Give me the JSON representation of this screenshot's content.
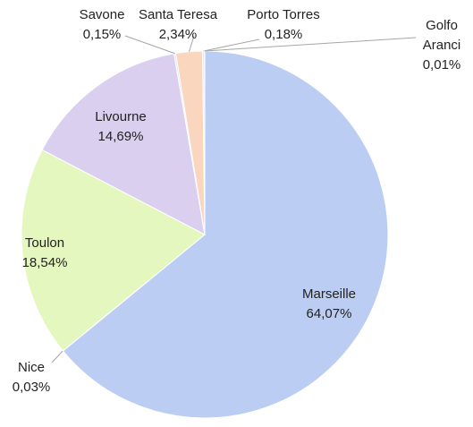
{
  "chart_data": {
    "type": "pie",
    "categories": [
      "Marseille",
      "Nice",
      "Toulon",
      "Livourne",
      "Savone",
      "Santa Teresa",
      "Porto Torres",
      "Golfo Aranci"
    ],
    "values": [
      64.07,
      0.03,
      18.54,
      14.69,
      0.15,
      2.34,
      0.18,
      0.01
    ],
    "value_labels": [
      "64,07%",
      "0,03%",
      "18,54%",
      "14,69%",
      "0,15%",
      "2,34%",
      "0,18%",
      "0,01%"
    ],
    "colors": [
      "#bccdf3",
      "#c3d4f4",
      "#e4f7bf",
      "#dacfee",
      "#d6e4f3",
      "#fbd6bf",
      "#dfe9f5",
      "#e8eef8"
    ]
  }
}
